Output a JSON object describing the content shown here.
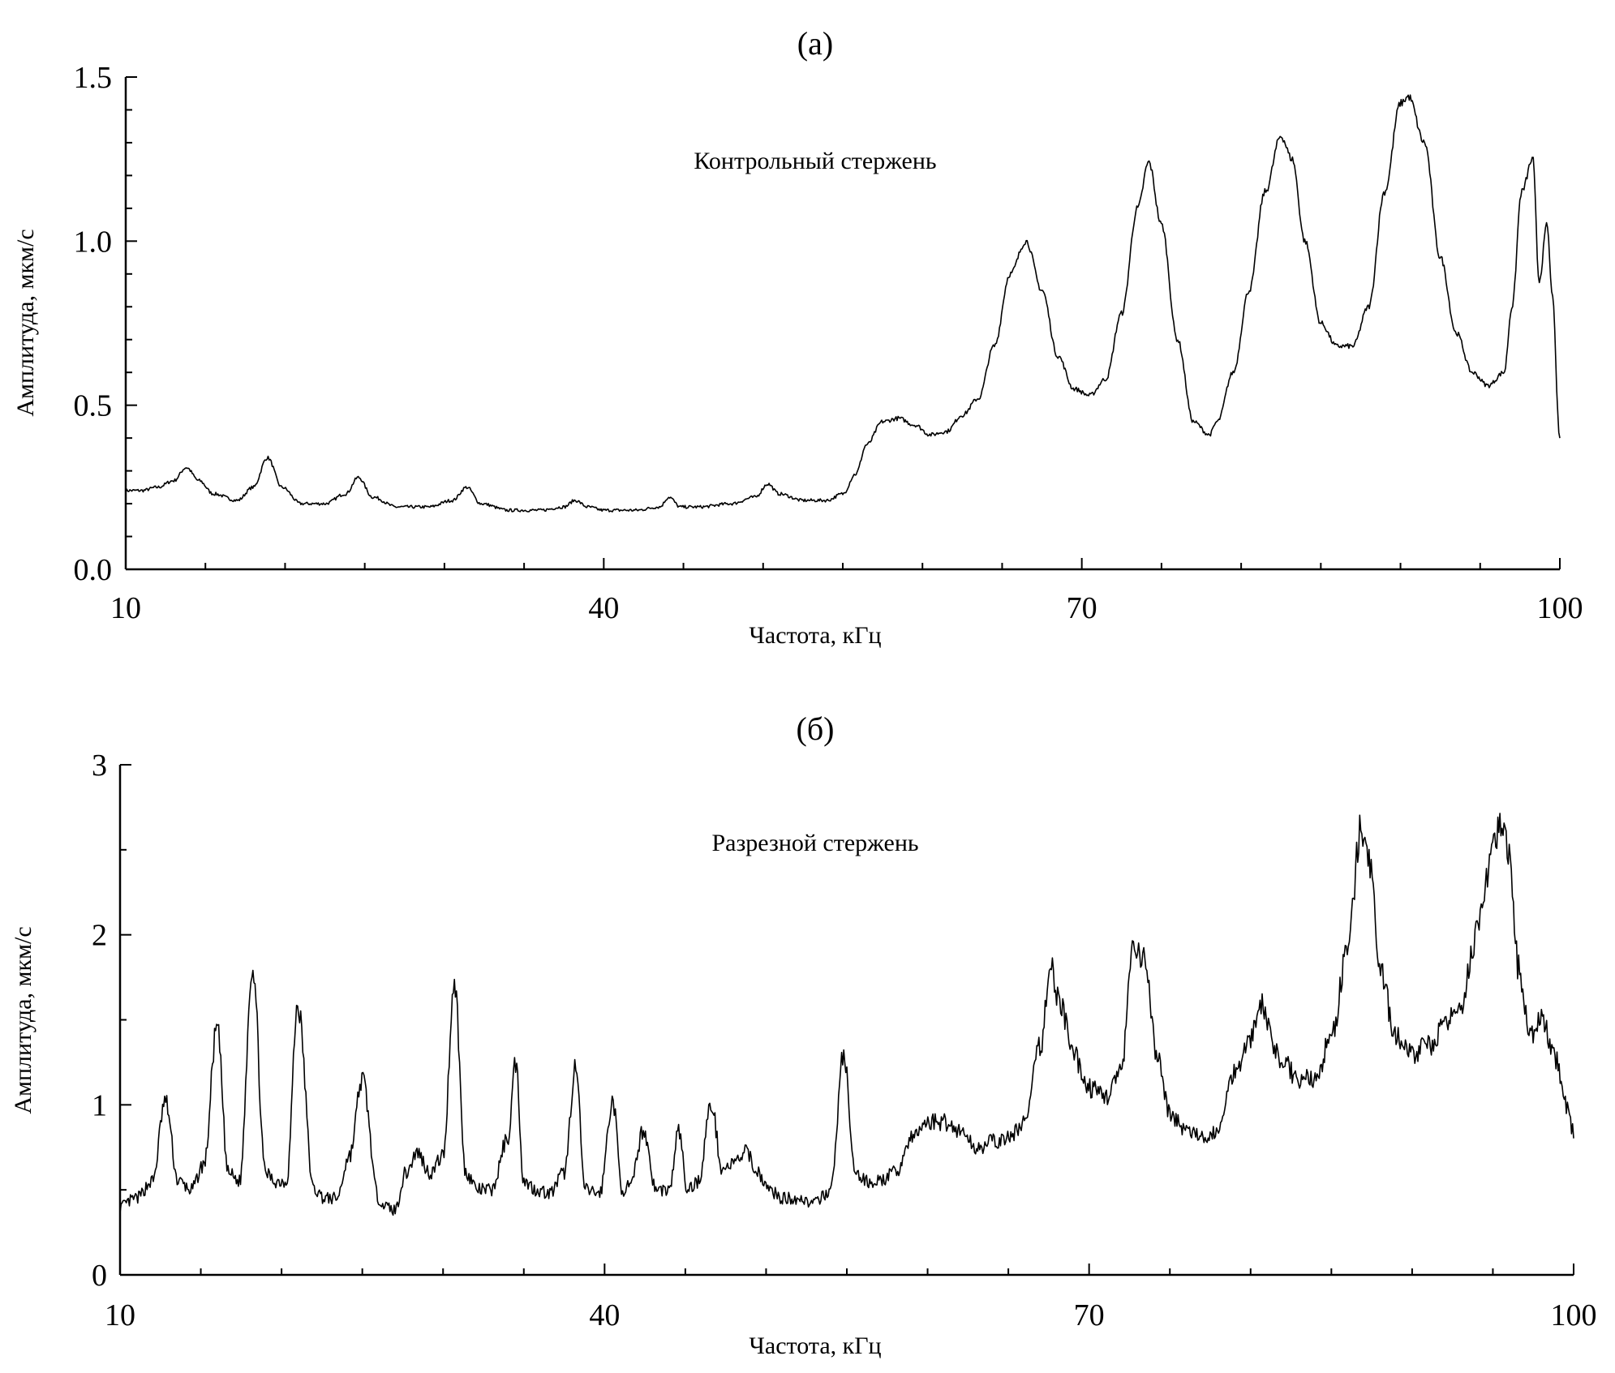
{
  "chart_data": [
    {
      "type": "line",
      "panel_label": "(а)",
      "annotation": "Контрольный стержень",
      "xlabel": "Частота, кГц",
      "ylabel": "Амплитуда, мкм/с",
      "xlim": [
        10,
        100
      ],
      "ylim": [
        0,
        1.5
      ],
      "xticks": [
        10,
        40,
        70,
        100
      ],
      "xtick_labels": [
        "10",
        "40",
        "70",
        "100"
      ],
      "yticks": [
        0,
        0.5,
        1.0,
        1.5
      ],
      "ytick_labels": [
        "0.0",
        "0.5",
        "1.0",
        "1.5"
      ],
      "grid": false,
      "series": [
        {
          "x": [
            10,
            11,
            12,
            13,
            13.8,
            14.6,
            15.5,
            17,
            18,
            18.9,
            19.8,
            21,
            22.5,
            23.8,
            24.6,
            25.5,
            27,
            29,
            30.5,
            31.4,
            32.3,
            34,
            36,
            37.5,
            38.2,
            39,
            40,
            42,
            43.5,
            44.1,
            44.8,
            46,
            48,
            49.5,
            50.3,
            51,
            52.5,
            54,
            55,
            55.8,
            56.5,
            57.5,
            58.5,
            59.5,
            60.5,
            61.5,
            62.5,
            63.5,
            64.5,
            65.5,
            66.5,
            67.5,
            68.5,
            69.5,
            70.5,
            71.5,
            72.5,
            73.5,
            74.2,
            75,
            76,
            77,
            78,
            78.5,
            79.5,
            80.5,
            81.5,
            82.5,
            83.2,
            84,
            85,
            86,
            87,
            88,
            89,
            90,
            90.5,
            91.5,
            92.5,
            93.5,
            94.5,
            95.5,
            96.5,
            97,
            97.6,
            98.3,
            98.7,
            99.2,
            99.5,
            100
          ],
          "y": [
            0.24,
            0.24,
            0.25,
            0.27,
            0.31,
            0.27,
            0.23,
            0.21,
            0.25,
            0.34,
            0.25,
            0.2,
            0.2,
            0.23,
            0.28,
            0.22,
            0.19,
            0.19,
            0.21,
            0.25,
            0.2,
            0.18,
            0.18,
            0.19,
            0.21,
            0.19,
            0.18,
            0.18,
            0.19,
            0.22,
            0.19,
            0.19,
            0.2,
            0.22,
            0.26,
            0.23,
            0.21,
            0.21,
            0.23,
            0.29,
            0.38,
            0.45,
            0.46,
            0.44,
            0.41,
            0.42,
            0.47,
            0.52,
            0.68,
            0.9,
            1.0,
            0.85,
            0.65,
            0.55,
            0.53,
            0.58,
            0.78,
            1.1,
            1.24,
            1.05,
            0.7,
            0.45,
            0.41,
            0.45,
            0.6,
            0.85,
            1.15,
            1.32,
            1.25,
            1.0,
            0.75,
            0.68,
            0.68,
            0.8,
            1.15,
            1.42,
            1.44,
            1.3,
            0.95,
            0.72,
            0.6,
            0.56,
            0.6,
            0.8,
            1.15,
            1.25,
            0.88,
            1.05,
            0.85,
            0.4
          ]
        }
      ]
    },
    {
      "type": "line",
      "panel_label": "(б)",
      "annotation": "Разрезной стержень",
      "xlabel": "Частота, кГц",
      "ylabel": "Амплитуда, мкм/с",
      "xlim": [
        10,
        100
      ],
      "ylim": [
        0,
        3
      ],
      "xticks": [
        10,
        40,
        70,
        100
      ],
      "xtick_labels": [
        "10",
        "40",
        "70",
        "100"
      ],
      "yticks": [
        0,
        1,
        2,
        3
      ],
      "ytick_labels": [
        "0",
        "1",
        "2",
        "3"
      ],
      "grid": false,
      "series": [
        {
          "x": [
            10,
            11,
            12,
            12.8,
            13.6,
            14.4,
            15.2,
            16,
            16.7,
            17.4,
            18.2,
            19,
            19.6,
            20.3,
            21,
            22,
            22.7,
            23.4,
            24.2,
            25,
            26,
            26.5,
            27,
            27.7,
            28.4,
            29.2,
            30,
            30.7,
            31.4,
            32.2,
            33,
            34,
            34.5,
            35,
            35.8,
            36.6,
            37.5,
            38.2,
            38.8,
            39.7,
            40.5,
            41.1,
            41.6,
            42.4,
            43.2,
            44,
            44.6,
            45.1,
            45.8,
            46.6,
            47.3,
            47.9,
            48.8,
            49.5,
            50.2,
            51,
            52,
            53,
            54,
            54.8,
            55.5,
            56.2,
            57,
            58,
            59,
            60,
            61,
            62,
            63,
            64,
            65,
            66,
            67,
            67.6,
            68.2,
            69,
            70,
            71,
            72,
            72.7,
            73.4,
            74.2,
            75,
            76,
            77,
            78,
            79,
            80,
            80.7,
            81.4,
            82,
            83,
            84,
            85,
            86,
            86.8,
            87.4,
            88,
            89,
            90,
            91,
            92,
            93,
            94,
            95,
            95.5,
            96,
            96.6,
            97.3,
            98,
            99,
            99.5,
            100
          ],
          "y": [
            0.4,
            0.45,
            0.55,
            1.02,
            0.55,
            0.5,
            0.65,
            1.45,
            0.6,
            0.55,
            1.82,
            0.6,
            0.55,
            0.55,
            1.58,
            0.5,
            0.45,
            0.45,
            0.7,
            1.15,
            0.45,
            0.4,
            0.38,
            0.6,
            0.72,
            0.6,
            0.7,
            1.72,
            0.6,
            0.5,
            0.5,
            0.8,
            1.25,
            0.55,
            0.5,
            0.48,
            0.6,
            1.22,
            0.5,
            0.48,
            1.02,
            0.5,
            0.52,
            0.85,
            0.5,
            0.5,
            0.85,
            0.5,
            0.55,
            1.0,
            0.62,
            0.65,
            0.72,
            0.6,
            0.5,
            0.45,
            0.45,
            0.42,
            0.5,
            1.3,
            0.6,
            0.55,
            0.55,
            0.6,
            0.8,
            0.9,
            0.9,
            0.85,
            0.75,
            0.78,
            0.8,
            0.9,
            1.35,
            1.82,
            1.6,
            1.3,
            1.1,
            1.05,
            1.2,
            1.9,
            1.85,
            1.3,
            0.95,
            0.85,
            0.8,
            0.85,
            1.2,
            1.4,
            1.6,
            1.35,
            1.25,
            1.15,
            1.15,
            1.4,
            1.9,
            2.6,
            2.4,
            1.8,
            1.4,
            1.3,
            1.35,
            1.45,
            1.6,
            2.0,
            2.5,
            2.65,
            2.45,
            1.8,
            1.4,
            1.5,
            1.25,
            1.0,
            0.85
          ]
        }
      ]
    }
  ]
}
